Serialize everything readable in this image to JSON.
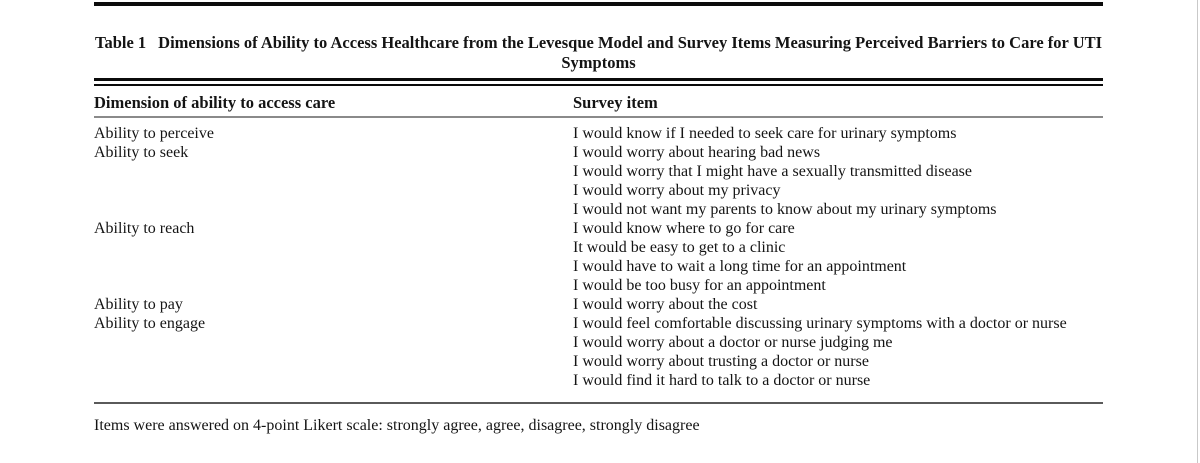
{
  "table": {
    "label": "Table 1",
    "title": "Dimensions of Ability to Access Healthcare from the Levesque Model and Survey Items Measuring Perceived Barriers to Care for UTI Symptoms",
    "columns": [
      "Dimension of ability to access care",
      "Survey item"
    ],
    "rows": [
      {
        "dimension": "Ability to perceive",
        "item": "I would know if I needed to seek care for urinary symptoms"
      },
      {
        "dimension": "Ability to seek",
        "item": "I would worry about hearing bad news"
      },
      {
        "dimension": "",
        "item": "I would worry that I might have a sexually transmitted disease"
      },
      {
        "dimension": "",
        "item": "I would worry about my privacy"
      },
      {
        "dimension": "",
        "item": "I would not want my parents to know about my urinary symptoms"
      },
      {
        "dimension": "Ability to reach",
        "item": "I would know where to go for care"
      },
      {
        "dimension": "",
        "item": "It would be easy to get to a clinic"
      },
      {
        "dimension": "",
        "item": "I would have to wait a long time for an appointment"
      },
      {
        "dimension": "",
        "item": "I would be too busy for an appointment"
      },
      {
        "dimension": "Ability to pay",
        "item": "I would worry about the cost"
      },
      {
        "dimension": "Ability to engage",
        "item": "I would feel comfortable discussing urinary symptoms with a doctor or nurse"
      },
      {
        "dimension": "",
        "item": "I would worry about a doctor or nurse judging me"
      },
      {
        "dimension": "",
        "item": "I would worry about trusting a doctor or nurse"
      },
      {
        "dimension": "",
        "item": "I would find it hard to talk to a doctor or nurse"
      }
    ],
    "footnote": "Items were answered on 4-point Likert scale: strongly agree, agree, disagree, strongly disagree"
  },
  "colors": {
    "text": "#141414",
    "heavy_rule": "#0b0b0b",
    "header_rule": "#8a8a8a",
    "bottom_rule": "#5a5a5a",
    "page_edge": "#c9c9c9",
    "background": "#ffffff"
  }
}
